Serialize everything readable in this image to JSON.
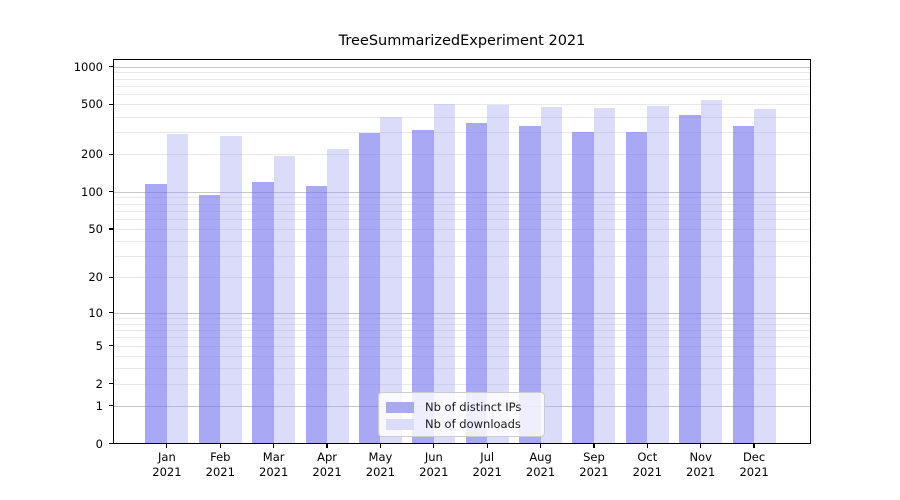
{
  "title": "TreeSummarizedExperiment 2021",
  "chart_data": {
    "type": "bar",
    "title": "TreeSummarizedExperiment 2021",
    "categories": [
      "Jan",
      "Feb",
      "Mar",
      "Apr",
      "May",
      "Jun",
      "Jul",
      "Aug",
      "Sep",
      "Oct",
      "Nov",
      "Dec"
    ],
    "category_year": "2021",
    "series": [
      {
        "name": "Nb of distinct IPs",
        "color": "#a8a8f5",
        "bar_fill": "rgba(110,110,238,0.60)",
        "values": [
          115,
          95,
          119,
          111,
          296,
          310,
          353,
          336,
          303,
          300,
          410,
          335
        ]
      },
      {
        "name": "Nb of downloads",
        "color": "#dbdbfa",
        "bar_fill": "rgba(158,158,242,0.37)",
        "values": [
          291,
          278,
          193,
          222,
          398,
          500,
          497,
          480,
          468,
          483,
          540,
          459
        ]
      }
    ],
    "y_ticks": [
      0,
      1,
      2,
      5,
      10,
      20,
      50,
      100,
      200,
      500,
      1000
    ],
    "y_scale": "log10(1+y)",
    "ylim": [
      0,
      1150
    ],
    "xlabel": "",
    "ylabel": "",
    "grid": "both",
    "legend_position": "lower center"
  },
  "colors": {
    "grid_minor": "#e9e9e9",
    "grid_major": "#c6c6ce",
    "axis": "#000000",
    "background": "#ffffff"
  }
}
